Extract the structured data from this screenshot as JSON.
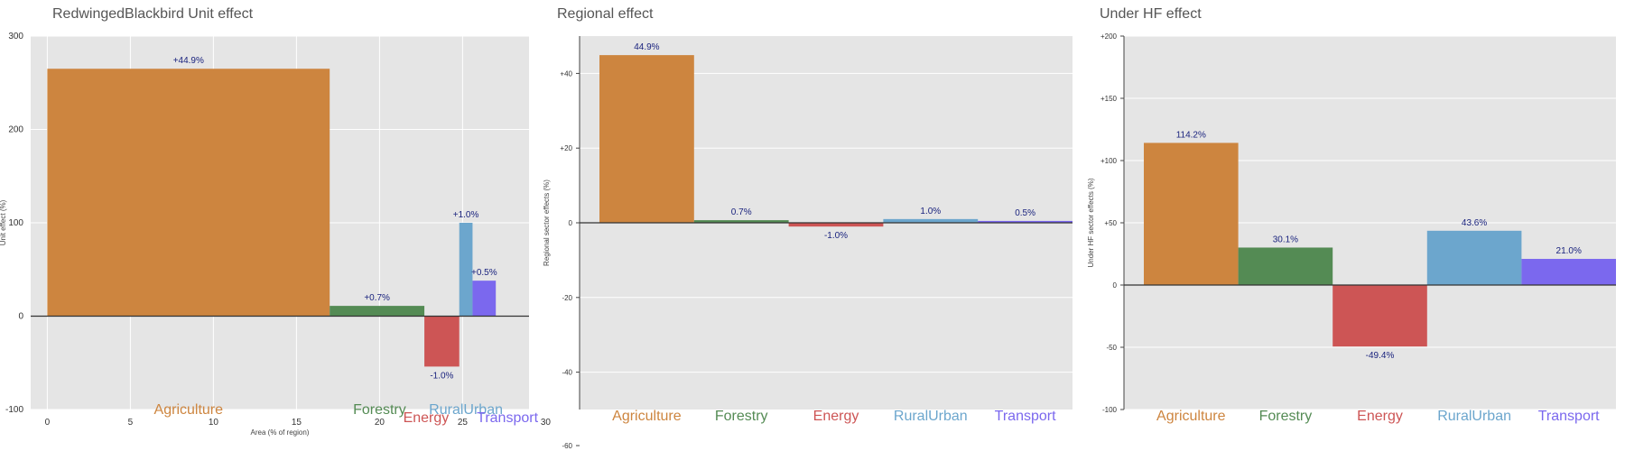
{
  "sector_colors": {
    "Agriculture": "#CD853F",
    "Forestry": "#548B54",
    "Energy": "#CD5555",
    "RuralUrban": "#6CA6CD",
    "Transport": "#7B68EE"
  },
  "chart_data": [
    {
      "type": "bar",
      "title": "RedwingedBlackbird Unit effect",
      "xlabel": "Area (% of region)",
      "ylabel": "Unit effect (%)",
      "xlim": [
        -1,
        29
      ],
      "ylim": [
        -100,
        300
      ],
      "x_ticks": [
        0,
        5,
        10,
        15,
        20,
        25,
        30
      ],
      "y_ticks": [
        -100,
        0,
        100,
        200,
        300
      ],
      "categories": [
        "Agriculture",
        "Forestry",
        "Energy",
        "RuralUrban",
        "Transport"
      ],
      "x_start": [
        0,
        17,
        22.7,
        24.8,
        25.6
      ],
      "widths": [
        17,
        5.7,
        2.1,
        0.8,
        1.4
      ],
      "values": [
        265,
        11,
        -54,
        100,
        38
      ],
      "data_labels": [
        "+44.9%",
        "+0.7%",
        "-1.0%",
        "+1.0%",
        "+0.5%"
      ],
      "grid": true
    },
    {
      "type": "bar",
      "title": "Regional effect",
      "ylabel": "Regional sector effects (%)",
      "ylim": [
        -50,
        50
      ],
      "y_ticks": [
        -60,
        -40,
        -20,
        0,
        20,
        40
      ],
      "y_tick_labels": [
        "-60",
        "-40",
        "-20",
        "0",
        "+20",
        "+40"
      ],
      "categories": [
        "Agriculture",
        "Forestry",
        "Energy",
        "RuralUrban",
        "Transport"
      ],
      "values": [
        44.9,
        0.7,
        -1.0,
        1.0,
        0.5
      ],
      "data_labels": [
        "44.9%",
        "0.7%",
        "-1.0%",
        "1.0%",
        "0.5%"
      ],
      "grid": true
    },
    {
      "type": "bar",
      "title": "Under HF effect",
      "ylabel": "Under HF sector effects (%)",
      "ylim": [
        -100,
        200
      ],
      "y_ticks": [
        -100,
        -50,
        0,
        50,
        100,
        150,
        200
      ],
      "y_tick_labels": [
        "-100",
        "-50",
        "0",
        "+50",
        "+100",
        "+150",
        "+200"
      ],
      "categories": [
        "Agriculture",
        "Forestry",
        "Energy",
        "RuralUrban",
        "Transport"
      ],
      "values": [
        114.2,
        30.1,
        -49.4,
        43.6,
        21.0
      ],
      "data_labels": [
        "114.2%",
        "30.1%",
        "-49.4%",
        "43.6%",
        "21.0%"
      ],
      "grid": true
    }
  ]
}
